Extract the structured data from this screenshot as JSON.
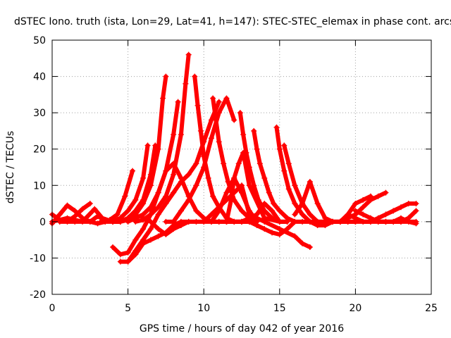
{
  "chart_data": {
    "type": "line",
    "title": "dSTEC Iono. truth (ista, Lon=29, Lat=41, h=147): STEC-STEC_elemax in phase cont. arcs",
    "xlabel": "GPS time / hours of day 042 of year 2016",
    "ylabel": "dSTEC  / TECUs",
    "xlim": [
      0,
      25
    ],
    "ylim": [
      -20,
      50
    ],
    "xticks": [
      0,
      5,
      10,
      15,
      20,
      25
    ],
    "yticks": [
      -20,
      -10,
      0,
      10,
      20,
      30,
      40,
      50
    ],
    "grid": true,
    "marker": "+",
    "color": "#ff0000",
    "series": [
      {
        "x": [
          0.0,
          0.5,
          1.0,
          1.5,
          2.0,
          2.5,
          3.0,
          3.5
        ],
        "y": [
          -0.5,
          2,
          4.5,
          3,
          1,
          0,
          -0.5,
          0
        ]
      },
      {
        "x": [
          0.0,
          0.5,
          1.0,
          1.5,
          2.0,
          2.5
        ],
        "y": [
          2,
          0.5,
          0,
          1.5,
          3.5,
          5
        ]
      },
      {
        "x": [
          0.0,
          1.0,
          2.0,
          2.8,
          3.3,
          4.0,
          4.5
        ],
        "y": [
          0,
          1,
          0,
          3.5,
          1,
          0,
          0
        ]
      },
      {
        "x": [
          0.5,
          1.5,
          2.5,
          3.0,
          3.5,
          4.0,
          4.5
        ],
        "y": [
          0,
          0,
          0,
          1.5,
          0.5,
          0,
          0
        ]
      },
      {
        "x": [
          3.2,
          3.8,
          4.3,
          4.8,
          5.3
        ],
        "y": [
          0,
          0.5,
          2,
          7,
          14
        ]
      },
      {
        "x": [
          3.5,
          4.0,
          4.5,
          5.0,
          5.5,
          6.0,
          6.3
        ],
        "y": [
          0,
          0,
          1,
          3,
          6,
          12,
          21
        ]
      },
      {
        "x": [
          4.0,
          4.5,
          5.0,
          5.5,
          6.0,
          6.5,
          6.8
        ],
        "y": [
          0,
          0,
          1,
          3,
          6,
          13,
          21
        ]
      },
      {
        "x": [
          4.5,
          5.0,
          5.5,
          6.0,
          6.5,
          7.0,
          7.3,
          7.5
        ],
        "y": [
          0,
          0.5,
          2,
          5,
          10,
          20,
          34,
          40
        ]
      },
      {
        "x": [
          5.0,
          5.5,
          6.0,
          6.5,
          7.0,
          7.5,
          8.0,
          8.3
        ],
        "y": [
          0,
          1,
          2,
          4,
          8,
          14,
          24,
          33
        ]
      },
      {
        "x": [
          5.5,
          6.0,
          6.5,
          7.0,
          7.5,
          8.0,
          8.5,
          8.8,
          9.0
        ],
        "y": [
          0,
          0.5,
          2,
          4,
          7,
          13,
          24,
          38,
          46
        ]
      },
      {
        "x": [
          4.0,
          4.5,
          5.0,
          5.5,
          6.0,
          6.5,
          7.0,
          7.5,
          8.0
        ],
        "y": [
          -7,
          -9,
          -8.5,
          -5,
          -2,
          2,
          8,
          14,
          16
        ]
      },
      {
        "x": [
          4.5,
          5.0,
          5.5,
          6.0,
          6.5,
          7.0,
          7.5,
          8.0,
          8.5,
          9.0
        ],
        "y": [
          -11,
          -11,
          -9,
          -6,
          -5,
          -4,
          -3,
          -1,
          0,
          0
        ]
      },
      {
        "x": [
          5.0,
          5.5,
          6.0,
          6.5,
          7.0,
          7.5,
          8.0,
          8.5,
          9.0,
          9.5,
          10.0,
          10.5,
          11.0
        ],
        "y": [
          -11,
          -8,
          -5,
          -2,
          2,
          5,
          8,
          11,
          13,
          16,
          22,
          28,
          33
        ]
      },
      {
        "x": [
          6.0,
          6.5,
          7.0,
          7.5,
          8.0,
          8.5,
          9.0,
          9.5,
          10.0,
          11.0,
          12.0,
          13.0
        ],
        "y": [
          1,
          0,
          -2,
          -3.5,
          -2,
          -1,
          0,
          0,
          0,
          0,
          0,
          0
        ]
      },
      {
        "x": [
          9.4,
          9.6,
          9.8,
          10.0,
          10.3,
          10.6,
          11.0,
          11.5,
          12.0,
          12.5,
          13.0
        ],
        "y": [
          40,
          32,
          25,
          18,
          12,
          7,
          4,
          1,
          0,
          0,
          0
        ]
      },
      {
        "x": [
          8.0,
          8.5,
          9.0,
          9.5,
          10.0,
          10.5,
          11.0,
          11.5,
          12.0,
          12.5
        ],
        "y": [
          16,
          12,
          7,
          3,
          1,
          0,
          0,
          0,
          0,
          0
        ]
      },
      {
        "x": [
          7.5,
          8.0,
          8.5,
          9.0,
          9.5,
          10.0,
          10.5,
          11.0,
          11.5,
          12.0
        ],
        "y": [
          0,
          0,
          3,
          6,
          10,
          15,
          23,
          30,
          34,
          28
        ]
      },
      {
        "x": [
          10.6,
          10.8,
          11.0,
          11.3,
          11.6,
          12.0,
          12.5,
          13.0,
          13.5
        ],
        "y": [
          34,
          28,
          22,
          16,
          11,
          6,
          3,
          1,
          0
        ]
      },
      {
        "x": [
          10.5,
          11.0,
          11.5,
          12.0,
          12.5,
          13.0,
          13.5
        ],
        "y": [
          0,
          3,
          8,
          12,
          8,
          3,
          0
        ]
      },
      {
        "x": [
          10.0,
          10.5,
          11.0,
          11.5,
          12.0,
          12.5,
          13.0,
          14.0,
          15.0,
          16.0,
          16.5,
          17.0
        ],
        "y": [
          0,
          2,
          4,
          6,
          8,
          10,
          2,
          0,
          -2,
          -4,
          -6,
          -7
        ]
      },
      {
        "x": [
          11.5,
          11.8,
          12.0,
          12.3,
          12.6,
          13.0,
          14.0,
          15.0,
          15.5
        ],
        "y": [
          0,
          6,
          12,
          16,
          19,
          10,
          1,
          0,
          0
        ]
      },
      {
        "x": [
          12.4,
          12.6,
          12.8,
          13.0,
          13.3,
          13.6,
          14.0,
          14.5,
          15.0,
          15.5
        ],
        "y": [
          30,
          24,
          19,
          15,
          10,
          6,
          3,
          1,
          0,
          0
        ]
      },
      {
        "x": [
          13.3,
          13.5,
          13.7,
          14.0,
          14.3,
          14.6,
          15.0,
          15.5,
          16.0
        ],
        "y": [
          25,
          20,
          16,
          12,
          8,
          5,
          3,
          1,
          0
        ]
      },
      {
        "x": [
          14.8,
          15.0,
          15.3,
          15.6,
          16.0,
          16.5,
          17.0,
          17.5,
          18.0
        ],
        "y": [
          26,
          20,
          14,
          9,
          5,
          2,
          0,
          0,
          0
        ]
      },
      {
        "x": [
          15.3,
          15.6,
          16.0,
          16.5,
          17.0,
          17.5,
          18.0,
          18.5
        ],
        "y": [
          21,
          16,
          10,
          5,
          2,
          0,
          0,
          0
        ]
      },
      {
        "x": [
          11.5,
          12.0,
          12.5,
          13.0,
          13.5,
          14.0,
          14.5,
          15.0
        ],
        "y": [
          0,
          0,
          0,
          1,
          2,
          5,
          3,
          0
        ]
      },
      {
        "x": [
          13.0,
          13.5,
          14.0,
          14.5,
          15.0,
          15.5,
          16.0,
          16.5,
          17.0
        ],
        "y": [
          0,
          -1,
          -2,
          -3,
          -3.5,
          -2,
          0,
          0,
          0
        ]
      },
      {
        "x": [
          16.0,
          16.5,
          17.0,
          17.5,
          18.0,
          18.5,
          19.0,
          19.5,
          20.0
        ],
        "y": [
          2,
          5,
          11,
          5,
          1,
          0,
          0,
          0,
          0
        ]
      },
      {
        "x": [
          17.0,
          17.5,
          18.0,
          18.5,
          19.0,
          19.5,
          20.0
        ],
        "y": [
          0,
          -1,
          -1,
          0,
          0,
          0,
          0
        ]
      },
      {
        "x": [
          18.5,
          19.0,
          19.5,
          20.0,
          20.5,
          21.0,
          21.5,
          22.0
        ],
        "y": [
          0,
          0,
          1,
          2,
          4,
          6,
          7,
          8
        ]
      },
      {
        "x": [
          19.0,
          19.5,
          20.0,
          20.5,
          21.0
        ],
        "y": [
          0,
          2,
          5,
          6,
          7
        ]
      },
      {
        "x": [
          19.5,
          20.0,
          20.5,
          21.0,
          21.5,
          22.0,
          22.5,
          23.0,
          23.5,
          24.0
        ],
        "y": [
          2,
          1,
          0,
          0,
          1,
          2,
          3,
          4,
          5,
          5
        ]
      },
      {
        "x": [
          20.0,
          20.5,
          21.0,
          21.5,
          22.0,
          22.5,
          23.0,
          23.5,
          24.0
        ],
        "y": [
          3,
          2,
          1,
          0,
          0,
          0,
          0,
          1,
          3
        ]
      },
      {
        "x": [
          20.0,
          21.0,
          22.0,
          23.0,
          24.0
        ],
        "y": [
          0,
          0,
          0,
          0,
          0
        ]
      },
      {
        "x": [
          21.0,
          21.5,
          22.0,
          22.5,
          23.0,
          23.5,
          24.0
        ],
        "y": [
          1,
          0,
          0,
          0,
          1,
          0,
          -0.5
        ]
      }
    ]
  }
}
